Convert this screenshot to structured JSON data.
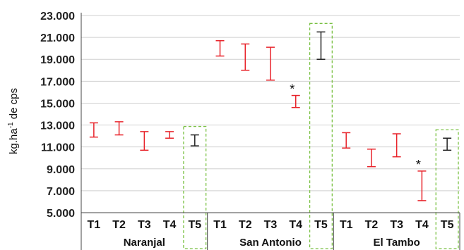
{
  "chart_data": {
    "type": "errorbar",
    "ylabel": {
      "main": "kg.ha",
      "sup": "-1",
      "rest": " de cps"
    },
    "ylim": [
      5000,
      23000
    ],
    "yticks": [
      "5.000",
      "7.000",
      "9.000",
      "11.000",
      "13.000",
      "15.000",
      "17.000",
      "19.000",
      "21.000",
      "23.000"
    ],
    "grid": true,
    "categories": [
      "T1",
      "T2",
      "T3",
      "T4",
      "T5"
    ],
    "highlight_category": "T5",
    "colors": {
      "treatment": "#e8232a",
      "control": "#222222",
      "highlight_box": "#7ac143",
      "grid": "#cfcfcf",
      "axis": "#444444"
    },
    "groups": [
      {
        "name": "Naranjal",
        "bars": [
          {
            "label": "T1",
            "low": 11900,
            "high": 13200,
            "sig": ""
          },
          {
            "label": "T2",
            "low": 12100,
            "high": 13300,
            "sig": ""
          },
          {
            "label": "T3",
            "low": 10700,
            "high": 12400,
            "sig": ""
          },
          {
            "label": "T4",
            "low": 11800,
            "high": 12400,
            "sig": ""
          },
          {
            "label": "T5",
            "low": 11100,
            "high": 12100,
            "sig": ""
          }
        ]
      },
      {
        "name": "San Antonio",
        "bars": [
          {
            "label": "T1",
            "low": 19300,
            "high": 20700,
            "sig": ""
          },
          {
            "label": "T2",
            "low": 18000,
            "high": 20400,
            "sig": ""
          },
          {
            "label": "T3",
            "low": 17100,
            "high": 20100,
            "sig": ""
          },
          {
            "label": "T4",
            "low": 14600,
            "high": 15700,
            "sig": "*"
          },
          {
            "label": "T5",
            "low": 19000,
            "high": 21500,
            "sig": ""
          }
        ]
      },
      {
        "name": "El Tambo",
        "bars": [
          {
            "label": "T1",
            "low": 10900,
            "high": 12300,
            "sig": ""
          },
          {
            "label": "T2",
            "low": 9200,
            "high": 10800,
            "sig": ""
          },
          {
            "label": "T3",
            "low": 10100,
            "high": 12200,
            "sig": ""
          },
          {
            "label": "T4",
            "low": 6100,
            "high": 8800,
            "sig": "*"
          },
          {
            "label": "T5",
            "low": 10700,
            "high": 11800,
            "sig": ""
          }
        ]
      }
    ]
  }
}
